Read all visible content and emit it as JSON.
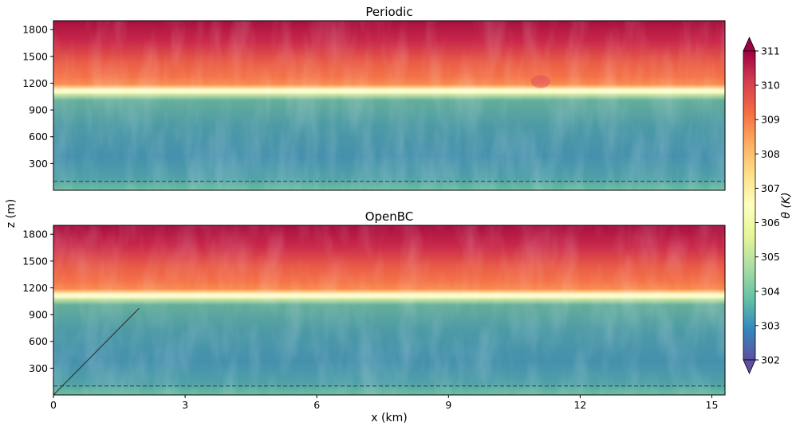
{
  "figure": {
    "ylabel": "z (m)",
    "xlabel": "x (km)",
    "colorbar_label": "θ (K)"
  },
  "chart_data": [
    {
      "type": "heatmap",
      "title": "Periodic",
      "xlim": [
        0,
        15.3
      ],
      "ylim": [
        0,
        1900
      ],
      "xticks": [],
      "yticks": [
        300,
        600,
        900,
        1200,
        1500,
        1800
      ],
      "inversion_height_m": 1110,
      "dashed_line_z_m": 100,
      "warm_blob": {
        "x_km": 11.1,
        "z_m": 1200
      }
    },
    {
      "type": "heatmap",
      "title": "OpenBC",
      "xlim": [
        0,
        15.3
      ],
      "ylim": [
        0,
        1900
      ],
      "xticks": [
        0,
        3,
        6,
        9,
        12,
        15
      ],
      "yticks": [
        300,
        600,
        900,
        1200,
        1500,
        1800
      ],
      "inversion_height_m": 1110,
      "dashed_line_z_m": 100,
      "diagonal_line": {
        "x_km": [
          0,
          1.95
        ],
        "z_m": [
          0,
          970
        ]
      }
    }
  ],
  "colorbar": {
    "min": 302,
    "max": 311,
    "ticks": [
      302,
      303,
      304,
      305,
      306,
      307,
      308,
      309,
      310,
      311
    ],
    "colormap": "Spectral_r",
    "extend": "both",
    "colors": [
      "#5e4fa2",
      "#3288bd",
      "#66c2a5",
      "#abdda4",
      "#e6f598",
      "#ffffbf",
      "#fee08b",
      "#fdae61",
      "#f46d43",
      "#d53e4f",
      "#9e0142"
    ]
  }
}
